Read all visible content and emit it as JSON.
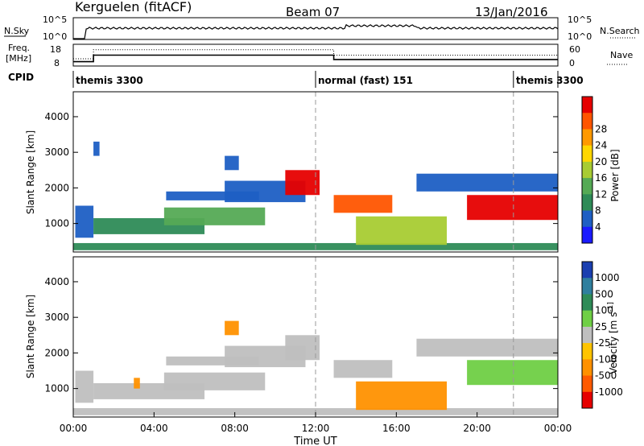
{
  "header": {
    "station": "Kerguelen (fitACF)",
    "beam": "Beam 07",
    "date": "13/Jan/2016"
  },
  "noise_panel": {
    "left_label": "N.Sky",
    "right_label": "N.Search",
    "left_ticks": [
      "10^5",
      "10^0"
    ],
    "right_ticks": [
      "10^5",
      "10^0"
    ]
  },
  "freq_panel": {
    "left_label_line1": "Freq.",
    "left_label_line2": "[MHz]",
    "right_label": "Nave",
    "left_ticks": [
      "18",
      "8"
    ],
    "right_ticks": [
      "60",
      "0"
    ],
    "freq_ylim": [
      8,
      18
    ],
    "freq_steps": [
      [
        0.0,
        10
      ],
      [
        1.0,
        13
      ],
      [
        12.0,
        13
      ],
      [
        12.9,
        11
      ],
      [
        24.0,
        11
      ]
    ],
    "nave_ylim": [
      0,
      60
    ],
    "nave_steps": [
      [
        0.0,
        20
      ],
      [
        1.0,
        45
      ],
      [
        12.0,
        45
      ],
      [
        12.9,
        30
      ],
      [
        24.0,
        30
      ]
    ]
  },
  "cpid": {
    "label": "CPID",
    "segments": [
      {
        "text": "themis 3300",
        "start": 0.0
      },
      {
        "text": "normal (fast) 151",
        "start": 12.0
      },
      {
        "text": "themis 3300",
        "start": 21.8
      }
    ],
    "boundaries": [
      12.0,
      21.8
    ]
  },
  "chart_data": [
    {
      "type": "heatmap",
      "title": "Power",
      "ylabel": "Slant Range [km]",
      "ylim": [
        200,
        4700
      ],
      "yticks": [
        "1000",
        "2000",
        "3000",
        "4000"
      ],
      "colorbar_label": "Power [dB]",
      "colorbar_ticks": [
        "4",
        "8",
        "12",
        "16",
        "20",
        "24",
        "28"
      ],
      "colorbar_colors": [
        "#1a1aff",
        "#1e5fc4",
        "#2e8b57",
        "#55aa55",
        "#a8cc33",
        "#ffd700",
        "#ff9900",
        "#ff5500",
        "#e60000"
      ],
      "patches": [
        {
          "t0": 0.0,
          "t1": 24.0,
          "r0": 250,
          "r1": 450,
          "level": 2
        },
        {
          "t0": 0.1,
          "t1": 1.0,
          "r0": 600,
          "r1": 1500,
          "level": 1
        },
        {
          "t0": 1.0,
          "t1": 6.5,
          "r0": 700,
          "r1": 1150,
          "level": 2
        },
        {
          "t0": 4.5,
          "t1": 9.5,
          "r0": 950,
          "r1": 1450,
          "level": 3
        },
        {
          "t0": 4.6,
          "t1": 9.2,
          "r0": 1650,
          "r1": 1900,
          "level": 1
        },
        {
          "t0": 7.5,
          "t1": 11.5,
          "r0": 1600,
          "r1": 2200,
          "level": 1
        },
        {
          "t0": 10.5,
          "t1": 12.2,
          "r0": 1800,
          "r1": 2500,
          "level": 8
        },
        {
          "t0": 12.9,
          "t1": 15.8,
          "r0": 1300,
          "r1": 1800,
          "level": 7
        },
        {
          "t0": 14.0,
          "t1": 18.5,
          "r0": 400,
          "r1": 1200,
          "level": 4
        },
        {
          "t0": 19.5,
          "t1": 24.0,
          "r0": 1100,
          "r1": 1800,
          "level": 8
        },
        {
          "t0": 17.0,
          "t1": 24.0,
          "r0": 1900,
          "r1": 2400,
          "level": 1
        },
        {
          "t0": 7.5,
          "t1": 8.2,
          "r0": 2500,
          "r1": 2900,
          "level": 1
        },
        {
          "t0": 1.0,
          "t1": 1.3,
          "r0": 2900,
          "r1": 3300,
          "level": 1
        }
      ]
    },
    {
      "type": "heatmap",
      "title": "Velocity",
      "ylabel": "Slant Range [km]",
      "ylim": [
        200,
        4700
      ],
      "yticks": [
        "1000",
        "2000",
        "3000",
        "4000"
      ],
      "xlabel": "Time UT",
      "xticks": [
        "00:00",
        "04:00",
        "08:00",
        "12:00",
        "16:00",
        "20:00",
        "00:00"
      ],
      "xlim": [
        0,
        24
      ],
      "colorbar_label": "Velocity [m s^-1]",
      "colorbar_ticks": [
        "1000",
        "500",
        "100",
        "25",
        "-25",
        "-100",
        "-500",
        "-1000"
      ],
      "colorbar_colors": [
        "#1a3fb0",
        "#2f7f9e",
        "#2e8b57",
        "#6fcf45",
        "#bfbfbf",
        "#ffc400",
        "#ff9100",
        "#ff5a00",
        "#e60000"
      ],
      "patches": [
        {
          "t0": 0.0,
          "t1": 24.0,
          "r0": 250,
          "r1": 450,
          "level": 4
        },
        {
          "t0": 0.1,
          "t1": 1.0,
          "r0": 600,
          "r1": 1500,
          "level": 4
        },
        {
          "t0": 1.0,
          "t1": 6.5,
          "r0": 700,
          "r1": 1150,
          "level": 4
        },
        {
          "t0": 4.5,
          "t1": 9.5,
          "r0": 950,
          "r1": 1450,
          "level": 4
        },
        {
          "t0": 4.6,
          "t1": 9.2,
          "r0": 1650,
          "r1": 1900,
          "level": 4
        },
        {
          "t0": 7.5,
          "t1": 11.5,
          "r0": 1600,
          "r1": 2200,
          "level": 4
        },
        {
          "t0": 10.5,
          "t1": 12.2,
          "r0": 1800,
          "r1": 2500,
          "level": 4
        },
        {
          "t0": 12.9,
          "t1": 15.8,
          "r0": 1300,
          "r1": 1800,
          "level": 4
        },
        {
          "t0": 14.0,
          "t1": 18.5,
          "r0": 400,
          "r1": 1200,
          "level": 6
        },
        {
          "t0": 19.5,
          "t1": 24.0,
          "r0": 1100,
          "r1": 1800,
          "level": 3
        },
        {
          "t0": 17.0,
          "t1": 24.0,
          "r0": 1900,
          "r1": 2400,
          "level": 4
        },
        {
          "t0": 3.0,
          "t1": 3.3,
          "r0": 1000,
          "r1": 1300,
          "level": 6
        },
        {
          "t0": 7.5,
          "t1": 8.2,
          "r0": 2500,
          "r1": 2900,
          "level": 6
        }
      ]
    }
  ]
}
